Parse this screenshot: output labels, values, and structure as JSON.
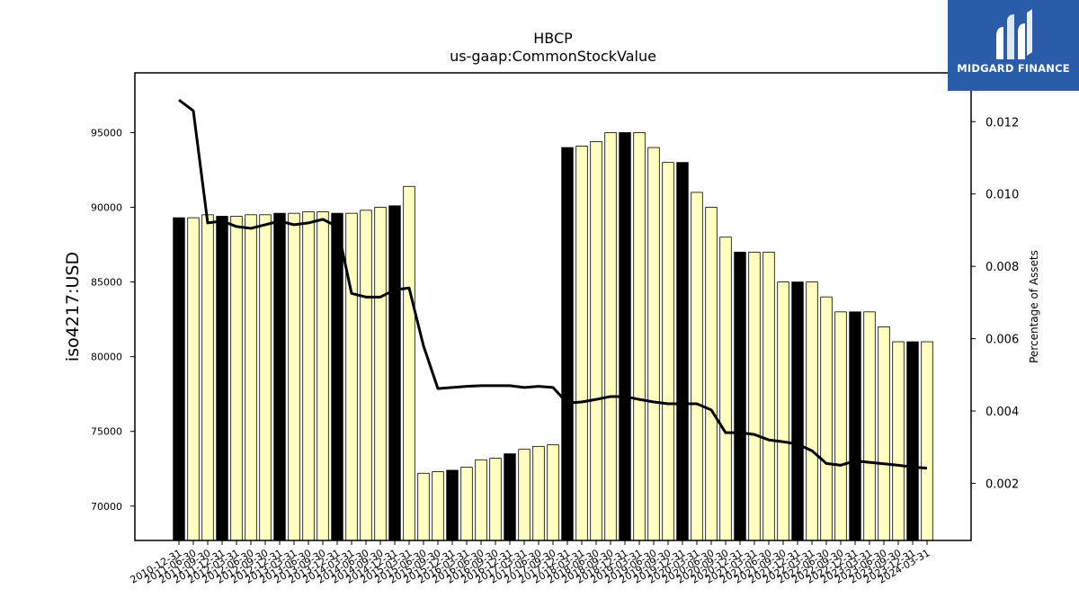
{
  "chart_data": {
    "type": "bar",
    "title": "HBCP",
    "subtitle": "us-gaap:CommonStockValue",
    "ylabel": "iso4217:USD",
    "y2label": "Percentage of Assets",
    "ylim": [
      67700,
      99000
    ],
    "y2lim": [
      0.00042,
      0.01335
    ],
    "yticks": [
      70000,
      75000,
      80000,
      85000,
      90000,
      95000
    ],
    "y2ticks": [
      0.002,
      0.004,
      0.006,
      0.008,
      0.01,
      0.012
    ],
    "y2tick_labels": [
      "0.002",
      "0.004",
      "0.006",
      "0.008",
      "0.010",
      "0.012"
    ],
    "grid": false,
    "categories": [
      "2010-12-31",
      "2011-06-30",
      "2011-09-30",
      "2011-12-31",
      "2012-03-31",
      "2012-06-30",
      "2012-09-30",
      "2012-12-31",
      "2013-03-31",
      "2013-06-30",
      "2013-09-30",
      "2013-12-31",
      "2014-03-31",
      "2014-06-30",
      "2014-09-30",
      "2014-12-31",
      "2015-03-31",
      "2015-06-30",
      "2015-09-30",
      "2015-12-31",
      "2016-03-31",
      "2016-06-30",
      "2016-09-30",
      "2016-12-31",
      "2017-03-31",
      "2017-06-30",
      "2017-09-30",
      "2017-12-31",
      "2018-03-31",
      "2018-06-30",
      "2018-09-30",
      "2018-12-31",
      "2019-03-31",
      "2019-06-30",
      "2019-09-30",
      "2019-12-31",
      "2020-03-31",
      "2020-06-30",
      "2020-09-30",
      "2020-12-31",
      "2021-03-31",
      "2021-06-30",
      "2021-09-30",
      "2021-12-31",
      "2022-03-31",
      "2022-06-30",
      "2022-09-30",
      "2022-12-31",
      "2023-03-31",
      "2023-06-30",
      "2023-09-30",
      "2023-12-31",
      "2024-03-31"
    ],
    "values": [
      89300,
      89300,
      89500,
      89400,
      89400,
      89500,
      89500,
      89600,
      89600,
      89700,
      89700,
      89600,
      89600,
      89800,
      90000,
      90100,
      91400,
      72200,
      72300,
      72400,
      72600,
      73100,
      73200,
      73500,
      73800,
      74000,
      74100,
      94000,
      94100,
      94400,
      95000,
      95000,
      95000,
      94000,
      93000,
      93000,
      91000,
      90000,
      88000,
      87000,
      87000,
      87000,
      85000,
      85000,
      85000,
      84000,
      83000,
      83000,
      83000,
      82000,
      81000,
      81000,
      81000
    ],
    "bar_colors": [
      "#000000",
      "#ffffc0",
      "#ffffc0",
      "#000000",
      "#ffffc0",
      "#ffffc0",
      "#ffffc0",
      "#000000",
      "#ffffc0",
      "#ffffc0",
      "#ffffc0",
      "#000000",
      "#ffffc0",
      "#ffffc0",
      "#ffffc0",
      "#000000",
      "#ffffc0",
      "#ffffc0",
      "#ffffc0",
      "#000000",
      "#ffffc0",
      "#ffffc0",
      "#ffffc0",
      "#000000",
      "#ffffc0",
      "#ffffc0",
      "#ffffc0",
      "#000000",
      "#ffffc0",
      "#ffffc0",
      "#ffffc0",
      "#000000",
      "#ffffc0",
      "#ffffc0",
      "#ffffc0",
      "#000000",
      "#ffffc0",
      "#ffffc0",
      "#ffffc0",
      "#000000",
      "#ffffc0",
      "#ffffc0",
      "#ffffc0",
      "#000000",
      "#ffffc0",
      "#ffffc0",
      "#ffffc0",
      "#000000",
      "#ffffc0",
      "#ffffc0",
      "#ffffc0",
      "#000000",
      "#ffffc0"
    ],
    "line_values": [
      0.0126,
      0.0123,
      0.0092,
      0.00925,
      0.0091,
      0.00905,
      0.00915,
      0.00925,
      0.00915,
      0.0092,
      0.0093,
      0.0091,
      0.00725,
      0.00715,
      0.00715,
      0.00735,
      0.0074,
      0.0058,
      0.00462,
      0.00465,
      0.00468,
      0.0047,
      0.0047,
      0.0047,
      0.00465,
      0.00468,
      0.00465,
      0.00422,
      0.00425,
      0.00432,
      0.0044,
      0.0044,
      0.00432,
      0.00425,
      0.0042,
      0.0042,
      0.0042,
      0.00403,
      0.0034,
      0.0034,
      0.00335,
      0.0032,
      0.00315,
      0.00308,
      0.0029,
      0.00255,
      0.0025,
      0.00262,
      0.00258,
      0.00254,
      0.0025,
      0.00245,
      0.00242
    ],
    "line_color": "#000000"
  },
  "logo": {
    "text": "MIDGARD FINANCE",
    "color": "#2a5caa"
  }
}
